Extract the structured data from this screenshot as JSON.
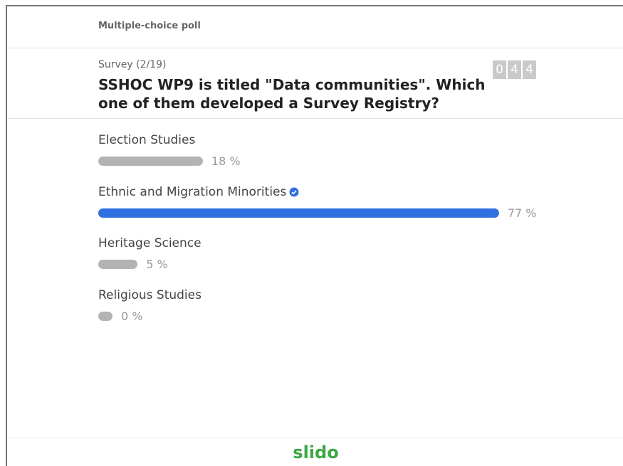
{
  "header": {
    "title": "Multiple-choice poll"
  },
  "poll": {
    "survey": "Survey (2/19)",
    "question": "SSHOC WP9 is titled \"Data communities\". Which one of them developed a Survey Registry?",
    "counter": [
      "0",
      "4",
      "4"
    ],
    "options": [
      {
        "label": "Election Studies",
        "value": 18,
        "value_label": "18 %",
        "correct": false
      },
      {
        "label": "Ethnic and Migration Minorities",
        "value": 77,
        "value_label": "77 %",
        "correct": true
      },
      {
        "label": "Heritage Science",
        "value": 5,
        "value_label": "5 %",
        "correct": false
      },
      {
        "label": "Religious Studies",
        "value": 0,
        "value_label": "0 %",
        "correct": false
      }
    ]
  },
  "footer": {
    "logo": "slido"
  }
}
